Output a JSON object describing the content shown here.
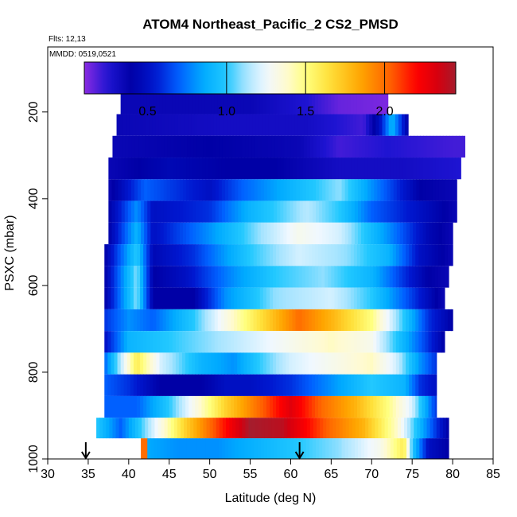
{
  "chart_data": {
    "type": "heatmap",
    "title": "ATOM4 Northeast_Pacific_2 CS2_PMSD",
    "flights_text": "Flts: 12,13",
    "dates_text": "MMDD: 0519,0521",
    "xlabel": "Latitude (deg N)",
    "ylabel": "PSXC (mbar)",
    "xlim": [
      30,
      85
    ],
    "ylim": [
      1000,
      50
    ],
    "x_ticks": [
      30,
      35,
      40,
      45,
      50,
      55,
      60,
      65,
      70,
      75,
      80,
      85
    ],
    "y_ticks": [
      200,
      400,
      600,
      800,
      1000
    ],
    "colorbar": {
      "range": [
        0.1,
        2.45
      ],
      "ticks": [
        0.5,
        1.0,
        1.5,
        2.0
      ],
      "tick_labels": [
        "0.5",
        "1.0",
        "1.5",
        "2.0"
      ],
      "divider_values": [
        1.0,
        1.5,
        2.0
      ]
    },
    "arrow_markers_lat": [
      34.7,
      61.1
    ],
    "bins": [
      {
        "p_center": 180,
        "lat_min": 39.0,
        "lat_max": 72.0,
        "nodes": [
          [
            39,
            0.35
          ],
          [
            45,
            0.35
          ],
          [
            55,
            0.35
          ],
          [
            62,
            0.25
          ],
          [
            66,
            0.15
          ],
          [
            72,
            0.12
          ]
        ]
      },
      {
        "p_center": 230,
        "lat_min": 38.5,
        "lat_max": 74.5,
        "nodes": [
          [
            38.5,
            0.35
          ],
          [
            52,
            0.3
          ],
          [
            62,
            0.3
          ],
          [
            69,
            0.2
          ],
          [
            71,
            0.5
          ],
          [
            72.5,
            0.9
          ],
          [
            74.5,
            0.4
          ]
        ]
      },
      {
        "p_center": 280,
        "lat_min": 38.0,
        "lat_max": 81.5,
        "nodes": [
          [
            38,
            0.35
          ],
          [
            50,
            0.4
          ],
          [
            61,
            0.35
          ],
          [
            66,
            0.2
          ],
          [
            72,
            0.25
          ],
          [
            80,
            0.2
          ],
          [
            81.5,
            0.2
          ]
        ]
      },
      {
        "p_center": 330,
        "lat_min": 37.5,
        "lat_max": 81.0,
        "nodes": [
          [
            37.5,
            0.35
          ],
          [
            45,
            0.45
          ],
          [
            52,
            0.4
          ],
          [
            58,
            0.4
          ],
          [
            66,
            0.3
          ],
          [
            74,
            0.3
          ],
          [
            81,
            0.25
          ]
        ]
      },
      {
        "p_center": 380,
        "lat_min": 37.5,
        "lat_max": 80.5,
        "nodes": [
          [
            37.5,
            0.35
          ],
          [
            42,
            0.7
          ],
          [
            50,
            0.5
          ],
          [
            54,
            0.7
          ],
          [
            60,
            0.9
          ],
          [
            66,
            1.1
          ],
          [
            70,
            0.8
          ],
          [
            76,
            0.4
          ],
          [
            80.5,
            0.35
          ]
        ]
      },
      {
        "p_center": 430,
        "lat_min": 37.5,
        "lat_max": 80.5,
        "nodes": [
          [
            37.5,
            0.4
          ],
          [
            41,
            0.8
          ],
          [
            43,
            0.5
          ],
          [
            50,
            0.6
          ],
          [
            55,
            0.9
          ],
          [
            62,
            1.15
          ],
          [
            66,
            1.0
          ],
          [
            70,
            0.7
          ],
          [
            76,
            0.5
          ],
          [
            80.5,
            0.35
          ]
        ]
      },
      {
        "p_center": 480,
        "lat_min": 37.5,
        "lat_max": 80.0,
        "nodes": [
          [
            37.5,
            0.4
          ],
          [
            41,
            0.9
          ],
          [
            43,
            0.5
          ],
          [
            50,
            0.8
          ],
          [
            56,
            1.1
          ],
          [
            61,
            1.3
          ],
          [
            66,
            1.2
          ],
          [
            72,
            0.8
          ],
          [
            77,
            0.45
          ],
          [
            80,
            0.35
          ]
        ]
      },
      {
        "p_center": 530,
        "lat_min": 37.0,
        "lat_max": 80.0,
        "nodes": [
          [
            37,
            0.4
          ],
          [
            41,
            1.0
          ],
          [
            43,
            0.45
          ],
          [
            48,
            0.6
          ],
          [
            55,
            1.0
          ],
          [
            61,
            1.2
          ],
          [
            67,
            1.1
          ],
          [
            72,
            0.9
          ],
          [
            76,
            0.5
          ],
          [
            80,
            0.35
          ]
        ]
      },
      {
        "p_center": 580,
        "lat_min": 37.0,
        "lat_max": 79.5,
        "nodes": [
          [
            37,
            0.4
          ],
          [
            41,
            1.1
          ],
          [
            43,
            0.4
          ],
          [
            47,
            0.5
          ],
          [
            53,
            0.8
          ],
          [
            58,
            1.0
          ],
          [
            64,
            1.1
          ],
          [
            70,
            0.9
          ],
          [
            74,
            0.6
          ],
          [
            77,
            0.4
          ],
          [
            79.5,
            0.35
          ]
        ]
      },
      {
        "p_center": 630,
        "lat_min": 37.0,
        "lat_max": 79.0,
        "nodes": [
          [
            37,
            0.4
          ],
          [
            41,
            1.1
          ],
          [
            43,
            0.4
          ],
          [
            48,
            0.4
          ],
          [
            52,
            0.8
          ],
          [
            58,
            1.1
          ],
          [
            65,
            1.2
          ],
          [
            70,
            1.0
          ],
          [
            74,
            0.7
          ],
          [
            78,
            0.4
          ],
          [
            79,
            0.35
          ]
        ]
      },
      {
        "p_center": 680,
        "lat_min": 37.0,
        "lat_max": 80.0,
        "nodes": [
          [
            37,
            0.6
          ],
          [
            40,
            0.8
          ],
          [
            43,
            0.7
          ],
          [
            48,
            1.0
          ],
          [
            53,
            1.4
          ],
          [
            57,
            1.7
          ],
          [
            61,
            2.0
          ],
          [
            65,
            1.8
          ],
          [
            70,
            1.5
          ],
          [
            74,
            1.0
          ],
          [
            77,
            0.6
          ],
          [
            80,
            0.4
          ]
        ]
      },
      {
        "p_center": 730,
        "lat_min": 37.0,
        "lat_max": 79.0,
        "nodes": [
          [
            37,
            0.5
          ],
          [
            40,
            0.9
          ],
          [
            45,
            1.0
          ],
          [
            50,
            1.1
          ],
          [
            55,
            1.2
          ],
          [
            60,
            1.3
          ],
          [
            65,
            1.4
          ],
          [
            70,
            1.3
          ],
          [
            74,
            0.9
          ],
          [
            77,
            0.6
          ],
          [
            79,
            0.4
          ]
        ]
      },
      {
        "p_center": 780,
        "lat_min": 37.0,
        "lat_max": 78.0,
        "nodes": [
          [
            37,
            0.7
          ],
          [
            41,
            1.6
          ],
          [
            44,
            1.2
          ],
          [
            49,
            0.9
          ],
          [
            53,
            0.8
          ],
          [
            56,
            1.0
          ],
          [
            60,
            1.2
          ],
          [
            65,
            1.3
          ],
          [
            70,
            1.4
          ],
          [
            73,
            1.2
          ],
          [
            76,
            0.8
          ],
          [
            78,
            0.6
          ]
        ]
      },
      {
        "p_center": 830,
        "lat_min": 37.0,
        "lat_max": 78.0,
        "nodes": [
          [
            37,
            0.7
          ],
          [
            40,
            0.6
          ],
          [
            44,
            0.4
          ],
          [
            49,
            0.4
          ],
          [
            52,
            0.5
          ],
          [
            55,
            0.5
          ],
          [
            60,
            0.6
          ],
          [
            65,
            0.8
          ],
          [
            70,
            1.0
          ],
          [
            74,
            0.9
          ],
          [
            76,
            0.6
          ],
          [
            78,
            0.5
          ]
        ]
      },
      {
        "p_center": 880,
        "lat_min": 37.0,
        "lat_max": 78.0,
        "nodes": [
          [
            37,
            0.7
          ],
          [
            41,
            0.7
          ],
          [
            45,
            1.0
          ],
          [
            49,
            1.4
          ],
          [
            52,
            1.7
          ],
          [
            56,
            2.0
          ],
          [
            60,
            2.3
          ],
          [
            64,
            2.0
          ],
          [
            68,
            1.8
          ],
          [
            72,
            1.5
          ],
          [
            75,
            1.2
          ],
          [
            77,
            0.8
          ],
          [
            78,
            0.6
          ]
        ]
      },
      {
        "p_center": 930,
        "lat_min": 36.0,
        "lat_max": 79.5,
        "nodes": [
          [
            36,
            1.0
          ],
          [
            39,
            0.7
          ],
          [
            43,
            1.2
          ],
          [
            47,
            1.7
          ],
          [
            51,
            2.1
          ],
          [
            55,
            2.45
          ],
          [
            59,
            2.4
          ],
          [
            62,
            2.2
          ],
          [
            65,
            2.0
          ],
          [
            69,
            1.8
          ],
          [
            73,
            1.4
          ],
          [
            76,
            0.9
          ],
          [
            78,
            0.6
          ],
          [
            79.5,
            0.4
          ]
        ]
      },
      {
        "p_center": 975,
        "lat_min": 41.5,
        "lat_max": 79.5,
        "nodes": [
          [
            41.5,
            2.0
          ],
          [
            42.4,
            2.0
          ],
          [
            42.5,
            0.85
          ],
          [
            46,
            0.8
          ],
          [
            51,
            0.8
          ],
          [
            56,
            0.9
          ],
          [
            61,
            1.0
          ],
          [
            66,
            1.1
          ],
          [
            71,
            1.3
          ],
          [
            74,
            1.6
          ],
          [
            75,
            1.0
          ],
          [
            77,
            0.5
          ],
          [
            79.5,
            0.4
          ]
        ]
      }
    ]
  }
}
